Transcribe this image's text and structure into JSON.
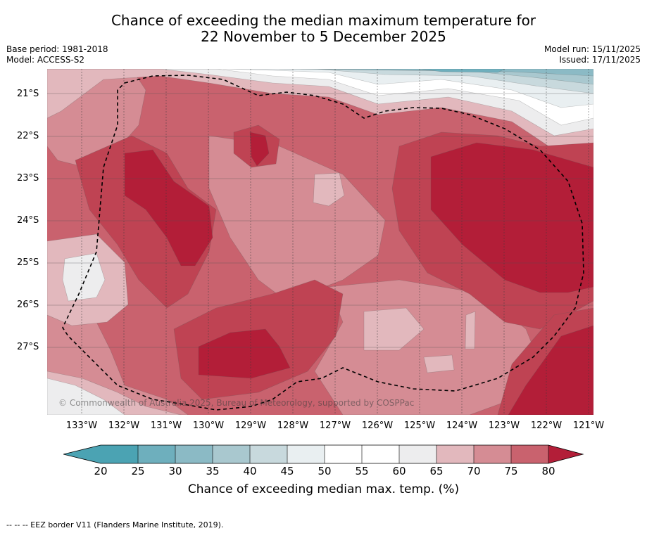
{
  "title": {
    "line1": "Chance of exceeding the median maximum temperature for",
    "line2": "22 November to 5 December 2025"
  },
  "meta": {
    "base_period": "Base period: 1981-2018",
    "model": "Model: ACCESS-S2",
    "model_run": "Model run: 15/11/2025",
    "issued": "Issued: 17/11/2025"
  },
  "map": {
    "lat_labels": [
      "21°S",
      "22°S",
      "23°S",
      "24°S",
      "25°S",
      "26°S",
      "27°S"
    ],
    "lon_labels": [
      "133°W",
      "132°W",
      "131°W",
      "130°W",
      "129°W",
      "128°W",
      "127°W",
      "126°W",
      "125°W",
      "124°W",
      "123°W",
      "122°W",
      "121°W"
    ],
    "copyright": "© Commonwealth of Australia 2025, Bureau of Meteorology, supported by COSPPac",
    "colors": {
      "c20": "#4ba3b3",
      "c25": "#6eafbd",
      "c30": "#8bbac5",
      "c35": "#a9c8cf",
      "c40": "#c8d9dd",
      "c45": "#e9eff1",
      "c50": "#ffffff",
      "c55": "#ffffff",
      "c60": "#ededee",
      "c65": "#e2b8bd",
      "c70": "#d58c94",
      "c75": "#c9626e",
      "c80": "#bf4353",
      "c85": "#b31e38"
    }
  },
  "colorbar": {
    "ticks": [
      "20",
      "25",
      "30",
      "35",
      "40",
      "45",
      "50",
      "55",
      "60",
      "65",
      "70",
      "75",
      "80"
    ],
    "label": "Chance of exceeding median max. temp. (%)"
  },
  "legend_note": "--  --  -- EEZ border V11 (Flanders Marine Institute, 2019)."
}
